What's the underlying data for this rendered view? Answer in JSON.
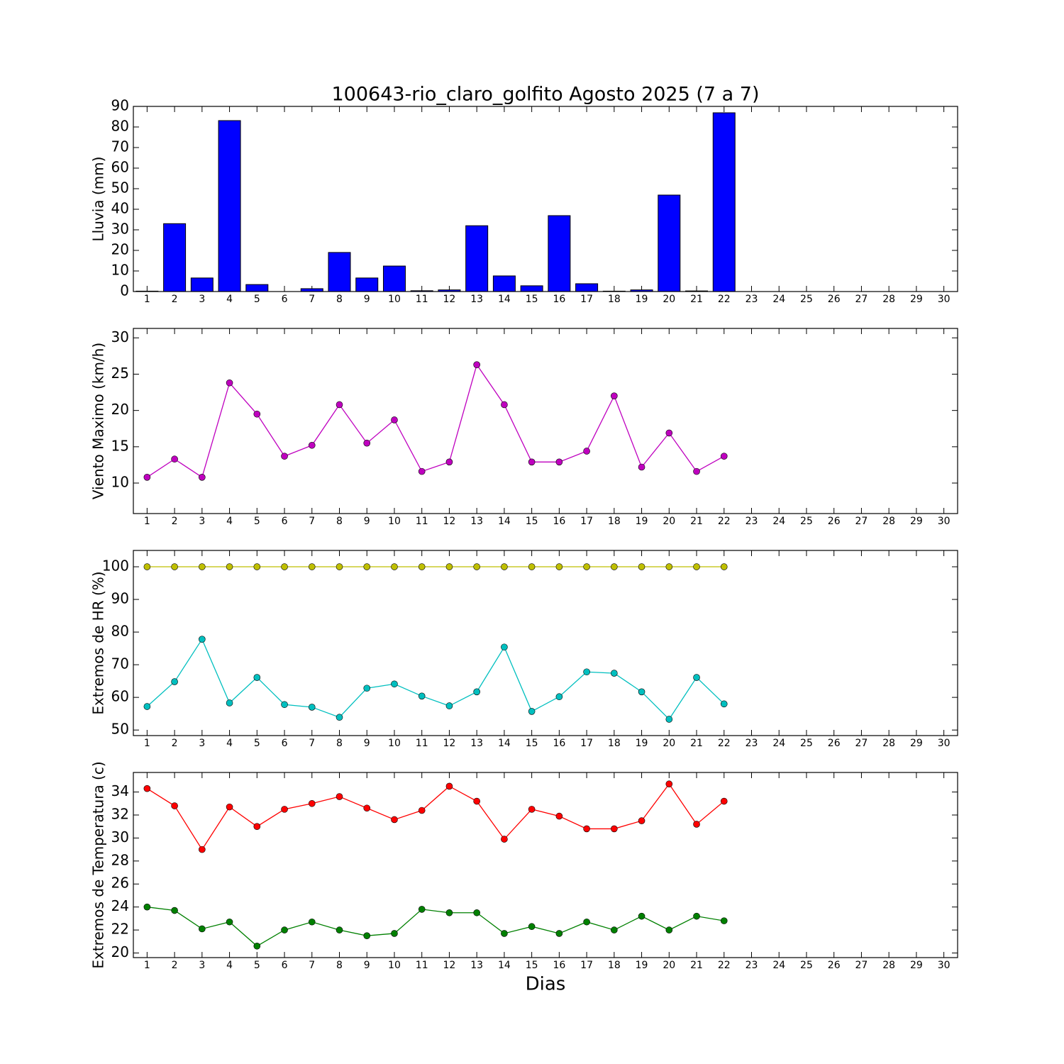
{
  "chart_data": [
    {
      "type": "bar",
      "title": "100643-rio_claro_golfito Agosto 2025  (7 a 7)",
      "y_label": "Lluvia (mm)",
      "x": [
        1,
        2,
        3,
        4,
        5,
        6,
        7,
        8,
        9,
        10,
        11,
        12,
        13,
        14,
        15,
        16,
        17,
        18,
        19,
        20,
        21,
        22
      ],
      "values": [
        0.2,
        33,
        6.6,
        83.1,
        3.4,
        0,
        1.4,
        19,
        6.6,
        12.4,
        0.4,
        0.8,
        32,
        7.6,
        2.8,
        36.9,
        3.8,
        0.2,
        0.8,
        46.9,
        0.3,
        86.9
      ],
      "color": "#0000ff",
      "xlim": [
        0.5,
        30.5
      ],
      "xticks": [
        1,
        2,
        3,
        4,
        5,
        6,
        7,
        8,
        9,
        10,
        11,
        12,
        13,
        14,
        15,
        16,
        17,
        18,
        19,
        20,
        21,
        22,
        23,
        24,
        25,
        26,
        27,
        28,
        29,
        30
      ],
      "ylim": [
        0,
        90
      ],
      "yticks": [
        0,
        10,
        20,
        30,
        40,
        50,
        60,
        70,
        80,
        90
      ],
      "grid": false
    },
    {
      "type": "line",
      "y_label": "Viento Maximo (km/h)",
      "x": [
        1,
        2,
        3,
        4,
        5,
        6,
        7,
        8,
        9,
        10,
        11,
        12,
        13,
        14,
        15,
        16,
        17,
        18,
        19,
        20,
        21,
        22
      ],
      "series": [
        {
          "color": "#bf00bf",
          "values": [
            10.8,
            13.3,
            10.8,
            23.8,
            19.5,
            13.7,
            15.2,
            20.8,
            15.5,
            18.7,
            11.6,
            12.9,
            26.3,
            20.8,
            12.9,
            12.9,
            14.4,
            22.0,
            12.2,
            16.9,
            11.6,
            13.7
          ]
        }
      ],
      "xlim": [
        0.5,
        30.5
      ],
      "xticks": [
        1,
        2,
        3,
        4,
        5,
        6,
        7,
        8,
        9,
        10,
        11,
        12,
        13,
        14,
        15,
        16,
        17,
        18,
        19,
        20,
        21,
        22,
        23,
        24,
        25,
        26,
        27,
        28,
        29,
        30
      ],
      "ylim": [
        5.8,
        31.3
      ],
      "yticks": [
        10,
        15,
        20,
        25,
        30
      ],
      "grid": false
    },
    {
      "type": "line",
      "y_label": "Extremos de HR (%)",
      "x": [
        1,
        2,
        3,
        4,
        5,
        6,
        7,
        8,
        9,
        10,
        11,
        12,
        13,
        14,
        15,
        16,
        17,
        18,
        19,
        20,
        21,
        22
      ],
      "series": [
        {
          "color": "#bfbf00",
          "values": [
            100,
            100,
            100,
            100,
            100,
            100,
            100,
            100,
            100,
            100,
            100,
            100,
            100,
            100,
            100,
            100,
            100,
            100,
            100,
            100,
            100,
            100
          ]
        },
        {
          "color": "#00bfbf",
          "values": [
            57.2,
            64.8,
            77.8,
            58.3,
            66.1,
            57.8,
            57.0,
            53.9,
            62.8,
            64.1,
            60.4,
            57.4,
            61.7,
            75.4,
            55.7,
            60.2,
            67.8,
            67.4,
            61.7,
            53.3,
            66.1,
            58.0
          ]
        }
      ],
      "xlim": [
        0.5,
        30.5
      ],
      "xticks": [
        1,
        2,
        3,
        4,
        5,
        6,
        7,
        8,
        9,
        10,
        11,
        12,
        13,
        14,
        15,
        16,
        17,
        18,
        19,
        20,
        21,
        22,
        23,
        24,
        25,
        26,
        27,
        28,
        29,
        30
      ],
      "ylim": [
        48.3,
        105
      ],
      "yticks": [
        50,
        60,
        70,
        80,
        90,
        100
      ],
      "grid": false
    },
    {
      "type": "line",
      "y_label": "Extremos de Temperatura (c)",
      "x_label": "Dias",
      "x": [
        1,
        2,
        3,
        4,
        5,
        6,
        7,
        8,
        9,
        10,
        11,
        12,
        13,
        14,
        15,
        16,
        17,
        18,
        19,
        20,
        21,
        22
      ],
      "series": [
        {
          "color": "#ff0000",
          "values": [
            34.3,
            32.8,
            29.0,
            32.7,
            31.0,
            32.5,
            33.0,
            33.6,
            32.6,
            31.6,
            32.4,
            34.5,
            33.2,
            29.9,
            32.5,
            31.9,
            30.8,
            30.8,
            31.5,
            34.7,
            31.2,
            33.2
          ]
        },
        {
          "color": "#008000",
          "values": [
            24.0,
            23.7,
            22.1,
            22.7,
            20.6,
            22.0,
            22.7,
            22.0,
            21.5,
            21.7,
            23.8,
            23.5,
            23.5,
            21.7,
            22.3,
            21.7,
            22.7,
            22.0,
            23.2,
            22.0,
            23.2,
            22.8
          ]
        }
      ],
      "xlim": [
        0.5,
        30.5
      ],
      "xticks": [
        1,
        2,
        3,
        4,
        5,
        6,
        7,
        8,
        9,
        10,
        11,
        12,
        13,
        14,
        15,
        16,
        17,
        18,
        19,
        20,
        21,
        22,
        23,
        24,
        25,
        26,
        27,
        28,
        29,
        30
      ],
      "ylim": [
        19.6,
        35.7
      ],
      "yticks": [
        20,
        22,
        24,
        26,
        28,
        30,
        32,
        34
      ],
      "grid": false
    }
  ]
}
